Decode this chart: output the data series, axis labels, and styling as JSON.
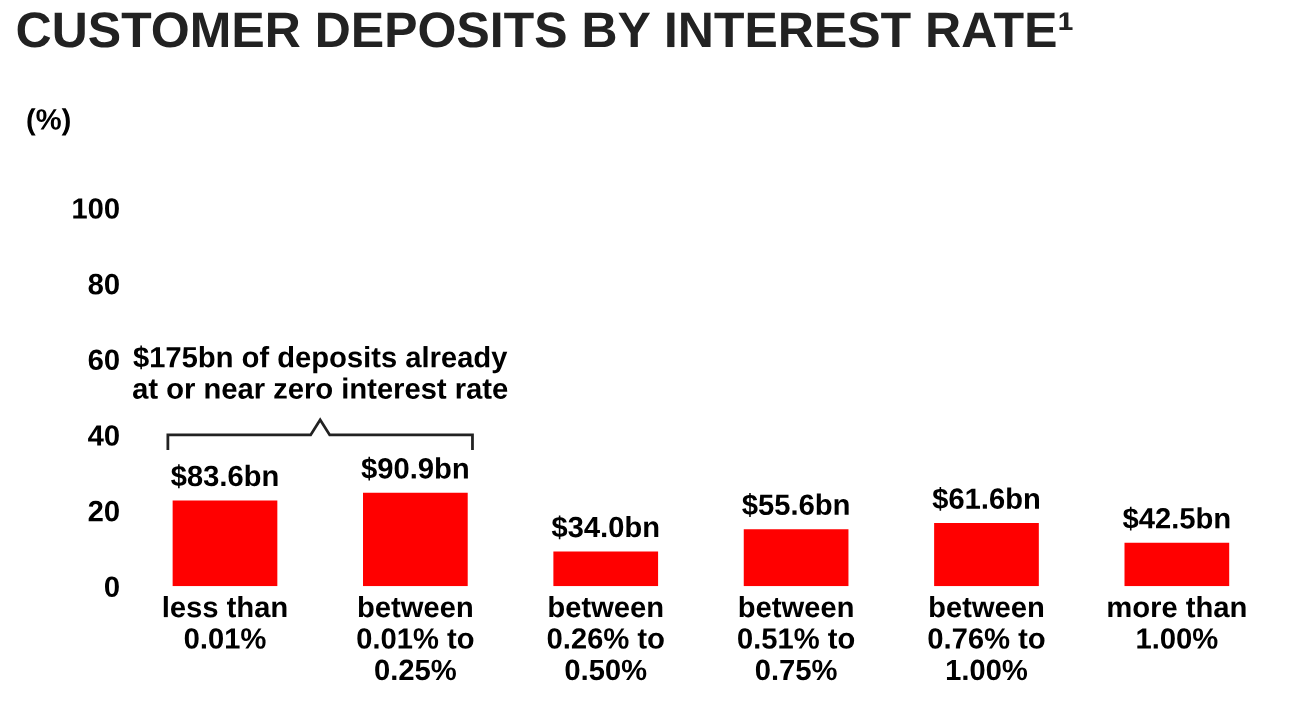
{
  "chart_data": {
    "type": "bar",
    "title": "CUSTOMER DEPOSITS BY INTEREST RATE¹",
    "ylabel": "(%)",
    "categories": [
      "less than\n0.01%",
      "between\n0.01% to\n0.25%",
      "between\n0.26% to\n0.50%",
      "between\n0.51% to\n0.75%",
      "between\n0.76% to\n1.00%",
      "more than\n1.00%"
    ],
    "values": [
      22.7,
      24.7,
      9.2,
      15.1,
      16.7,
      11.5
    ],
    "color": "#ff0000",
    "ylim": [
      0,
      100
    ],
    "yticks": [
      0,
      20,
      40,
      60,
      80,
      100
    ],
    "grid": false,
    "legend": false,
    "annotations": [
      "$175bn of deposits already\nat or near zero interest rate",
      {
        "text": "$83.6bn",
        "x": "less than\n0.01%",
        "y": 22.7
      },
      {
        "text": "$90.9bn",
        "x": "between\n0.01% to\n0.25%",
        "y": 24.7
      },
      {
        "text": "$34.0bn",
        "x": "between\n0.26% to\n0.50%",
        "y": 9.2
      },
      {
        "text": "$55.6bn",
        "x": "between\n0.51% to\n0.75%",
        "y": 15.1
      },
      {
        "text": "$61.6bn",
        "x": "between\n0.76% to\n1.00%",
        "y": 16.7
      },
      {
        "text": "$42.5bn",
        "x": "more than\n1.00%",
        "y": 11.5
      }
    ]
  }
}
